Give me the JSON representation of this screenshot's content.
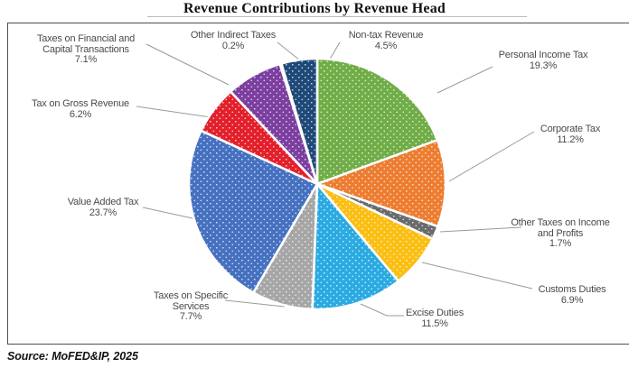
{
  "title": "Revenue Contributions by Revenue Head",
  "source": "Source: MoFED&IP, 2025",
  "chart_data": {
    "type": "pie",
    "title": "Revenue Contributions by Revenue Head",
    "unit": "percent",
    "start_angle_deg": 0,
    "direction": "clockwise",
    "pattern": "white-dots",
    "slices": [
      {
        "name": "Personal Income Tax",
        "value": 19.3,
        "color": "#70AD47",
        "label_lines": [
          "Personal Income Tax",
          "19.3%"
        ]
      },
      {
        "name": "Corporate Tax",
        "value": 11.2,
        "color": "#ED7D31",
        "label_lines": [
          "Corporate Tax",
          "11.2%"
        ]
      },
      {
        "name": "Other Taxes on Income and Profits",
        "value": 1.7,
        "color": "#696A6E",
        "label_lines": [
          "Other Taxes on Income",
          "and Profits",
          "1.7%"
        ]
      },
      {
        "name": "Customs Duties",
        "value": 6.9,
        "color": "#FBBE12",
        "label_lines": [
          "Customs  Duties",
          "6.9%"
        ]
      },
      {
        "name": "Excise Duties",
        "value": 11.5,
        "color": "#2BAAE2",
        "label_lines": [
          "Excise Duties",
          "11.5%"
        ]
      },
      {
        "name": "Taxes on Specific Services",
        "value": 7.7,
        "color": "#A6A6A6",
        "label_lines": [
          "Taxes on Specific",
          "Services",
          "7.7%"
        ]
      },
      {
        "name": "Value Added Tax",
        "value": 23.7,
        "color": "#4671C0",
        "label_lines": [
          "Value Added Tax",
          "23.7%"
        ]
      },
      {
        "name": "Tax on Gross Revenue",
        "value": 6.2,
        "color": "#E2202B",
        "label_lines": [
          "Tax on Gross Revenue",
          "6.2%"
        ]
      },
      {
        "name": "Taxes on Financial and Capital Transactions",
        "value": 7.1,
        "color": "#7C3FA0",
        "label_lines": [
          "Taxes on Financial and",
          "Capital  Transactions",
          "7.1%"
        ]
      },
      {
        "name": "Other Indirect Taxes",
        "value": 0.2,
        "color": "#7E57A5",
        "label_lines": [
          "Other Indirect Taxes",
          "0.2%"
        ]
      },
      {
        "name": "Non-tax Revenue",
        "value": 4.5,
        "color": "#1F4979",
        "label_lines": [
          "Non-tax Revenue",
          "4.5%"
        ]
      }
    ]
  }
}
